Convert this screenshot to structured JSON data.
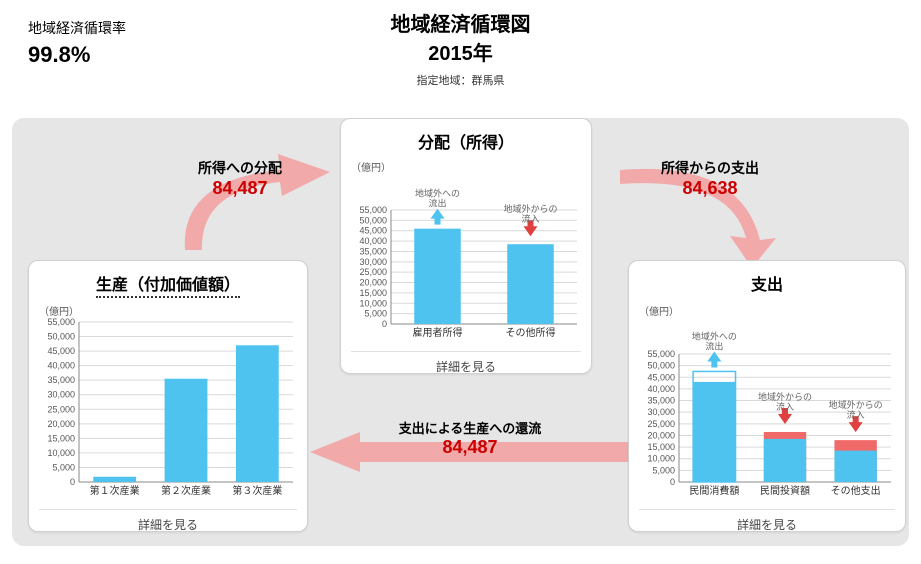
{
  "title": {
    "line1": "地域経済循環図",
    "line2": "2015年",
    "fontsize": 20,
    "sub": "指定地域：群馬県",
    "sub_fontsize": 11
  },
  "rate": {
    "label": "地域経済循環率",
    "value": "99.8%",
    "label_fontsize": 14,
    "value_fontsize": 22
  },
  "colors": {
    "bar": "#4fc3f0",
    "bar2": "#f06a6a",
    "bar_outline": "#ffffff",
    "arrow_pink": "#f2a9a9",
    "anno_blue": "#4fc3f0",
    "anno_red": "#e04040",
    "grid": "#d9d9d9",
    "panel_border": "#d0d0d0",
    "bg_gray": "#e6e6e6",
    "title": "#111111",
    "flow_red": "#cc0000"
  },
  "ylim": {
    "min": 0,
    "max": 55000,
    "step": 5000
  },
  "ylabel": "（億円）",
  "panels": {
    "production": {
      "title": "生産（付加価値額）",
      "categories": [
        "第１次産業",
        "第２次産業",
        "第３次産業"
      ],
      "values": [
        1800,
        35500,
        47000
      ],
      "detail": "詳細を見る"
    },
    "distribution": {
      "title": "分配（所得）",
      "categories": [
        "雇用者所得",
        "その他所得"
      ],
      "values": [
        46000,
        38500
      ],
      "anno": [
        {
          "label": "地域外への\n流出",
          "dir": "up",
          "color": "#4fc3f0"
        },
        {
          "label": "地域外からの\n流入",
          "dir": "down",
          "color": "#e04040"
        }
      ],
      "detail": "詳細を見る"
    },
    "expenditure": {
      "title": "支出",
      "categories": [
        "民間消費額",
        "民間投資額",
        "その他支出"
      ],
      "series": {
        "base": [
          43000,
          18500,
          13500
        ],
        "overlay": [
          47500,
          21500,
          18000
        ]
      },
      "overlay_fill": [
        "none",
        "#f06a6a",
        "#f06a6a"
      ],
      "overlay_stroke": [
        "#4fc3f0",
        "none",
        "none"
      ],
      "anno": [
        {
          "label": "地域外への\n流出",
          "dir": "up",
          "color": "#4fc3f0",
          "at": 0
        },
        {
          "label": "地域外からの\n流入",
          "dir": "down",
          "color": "#e04040",
          "at": 1
        },
        {
          "label": "地域外からの\n流入",
          "dir": "down",
          "color": "#e04040",
          "at": 2
        }
      ],
      "detail": "詳細を見る"
    }
  },
  "flows": {
    "to_dist": {
      "label": "所得への分配",
      "value": "84,487"
    },
    "to_exp": {
      "label": "所得からの支出",
      "value": "84,638"
    },
    "to_prod": {
      "label": "支出による生産への還流",
      "value": "84,487"
    }
  }
}
